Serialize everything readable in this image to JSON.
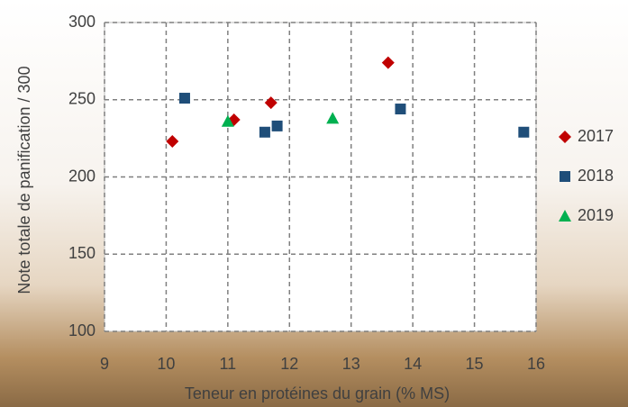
{
  "chart_data": {
    "type": "scatter",
    "x_label": "Teneur en protéines du grain (% MS)",
    "y_label": "Note totale de panification / 300",
    "xlim": [
      9,
      16
    ],
    "xticks": [
      9,
      10,
      11,
      12,
      13,
      14,
      15,
      16
    ],
    "ylim": [
      100,
      300
    ],
    "yticks": [
      100,
      150,
      200,
      250,
      300
    ],
    "grid": true,
    "legend": "right",
    "series": [
      {
        "name": "2017",
        "color": "#c00000",
        "marker": "diamond",
        "x": [
          10.1,
          11.1,
          11.7,
          13.6
        ],
        "values": [
          223,
          237,
          248,
          274
        ]
      },
      {
        "name": "2018",
        "color": "#1f4e79",
        "marker": "square",
        "x": [
          10.3,
          11.6,
          11.8,
          13.8,
          15.8
        ],
        "values": [
          251,
          229,
          233,
          244,
          229
        ]
      },
      {
        "name": "2019",
        "color": "#00b050",
        "marker": "triangle",
        "x": [
          11.0,
          12.7
        ],
        "values": [
          236,
          238
        ]
      }
    ]
  }
}
